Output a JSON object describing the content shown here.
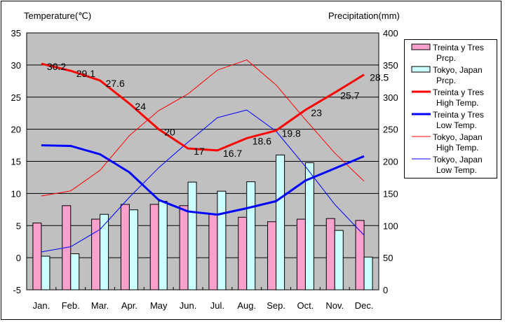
{
  "chart_data": {
    "type": "bar+line",
    "left_axis_title": "Temperature(℃)",
    "right_axis_title": "Precipitation(mm)",
    "categories": [
      "Jan.",
      "Feb.",
      "Mar.",
      "Apr.",
      "May",
      "Jun.",
      "Jul.",
      "Aug.",
      "Sep.",
      "Oct.",
      "Nov.",
      "Dec."
    ],
    "left_ylim": [
      -5,
      35
    ],
    "left_ticks": [
      -5,
      0,
      5,
      10,
      15,
      20,
      25,
      30,
      35
    ],
    "right_ylim": [
      0,
      400
    ],
    "right_ticks": [
      0,
      50,
      100,
      150,
      200,
      250,
      300,
      350,
      400
    ],
    "grid": true,
    "legend_position": "right",
    "series": [
      {
        "name": "Treinta y Tres Prcp.",
        "legend": [
          "Treinta y Tres",
          "Prcp."
        ],
        "kind": "bar",
        "axis": "right",
        "color": "#f9a0cc",
        "values": [
          104,
          131,
          110,
          133,
          133,
          131,
          118,
          113,
          106,
          110,
          111,
          108
        ]
      },
      {
        "name": "Tokyo, Japan Prcp.",
        "legend": [
          "Tokyo, Japan",
          "Prcp."
        ],
        "kind": "bar",
        "axis": "right",
        "color": "#ccffff",
        "values": [
          52.3,
          56.1,
          117.5,
          124.5,
          137.8,
          167.7,
          153.5,
          168.2,
          209.9,
          197.8,
          92.5,
          51.0
        ]
      },
      {
        "name": "Treinta y Tres High Temp.",
        "legend": [
          "Treinta y Tres",
          "High Temp."
        ],
        "kind": "line",
        "axis": "left",
        "color": "#ff0000",
        "width": 3,
        "values": [
          30.2,
          29.1,
          27.6,
          24,
          20,
          17,
          16.7,
          18.6,
          19.8,
          23,
          25.7,
          28.5
        ],
        "labels": [
          "30.2",
          "29.1",
          "27.6",
          "24",
          "20",
          "17",
          "16.7",
          "18.6",
          "19.8",
          "23",
          "25.7",
          "28.5"
        ]
      },
      {
        "name": "Treinta y Tres Low Temp.",
        "legend": [
          "Treinta y Tres",
          "Low Temp."
        ],
        "kind": "line",
        "axis": "left",
        "color": "#0000ff",
        "width": 3,
        "values": [
          17.5,
          17.4,
          16.1,
          13.3,
          9.0,
          7.2,
          6.7,
          7.7,
          8.8,
          12.0,
          13.9,
          15.8
        ]
      },
      {
        "name": "Tokyo, Japan High Temp.",
        "legend": [
          "Tokyo, Japan",
          "High Temp."
        ],
        "kind": "line",
        "axis": "left",
        "color": "#ff0000",
        "width": 1,
        "values": [
          9.6,
          10.4,
          13.6,
          19.0,
          22.9,
          25.5,
          29.2,
          30.8,
          26.9,
          21.5,
          16.3,
          11.9
        ]
      },
      {
        "name": "Tokyo, Japan Low Temp.",
        "legend": [
          "Tokyo, Japan",
          "Low Temp."
        ],
        "kind": "line",
        "axis": "left",
        "color": "#0000ff",
        "width": 1,
        "values": [
          0.9,
          1.7,
          4.4,
          9.4,
          14.0,
          18.0,
          21.8,
          23.0,
          19.7,
          14.2,
          8.3,
          3.5
        ]
      }
    ]
  }
}
